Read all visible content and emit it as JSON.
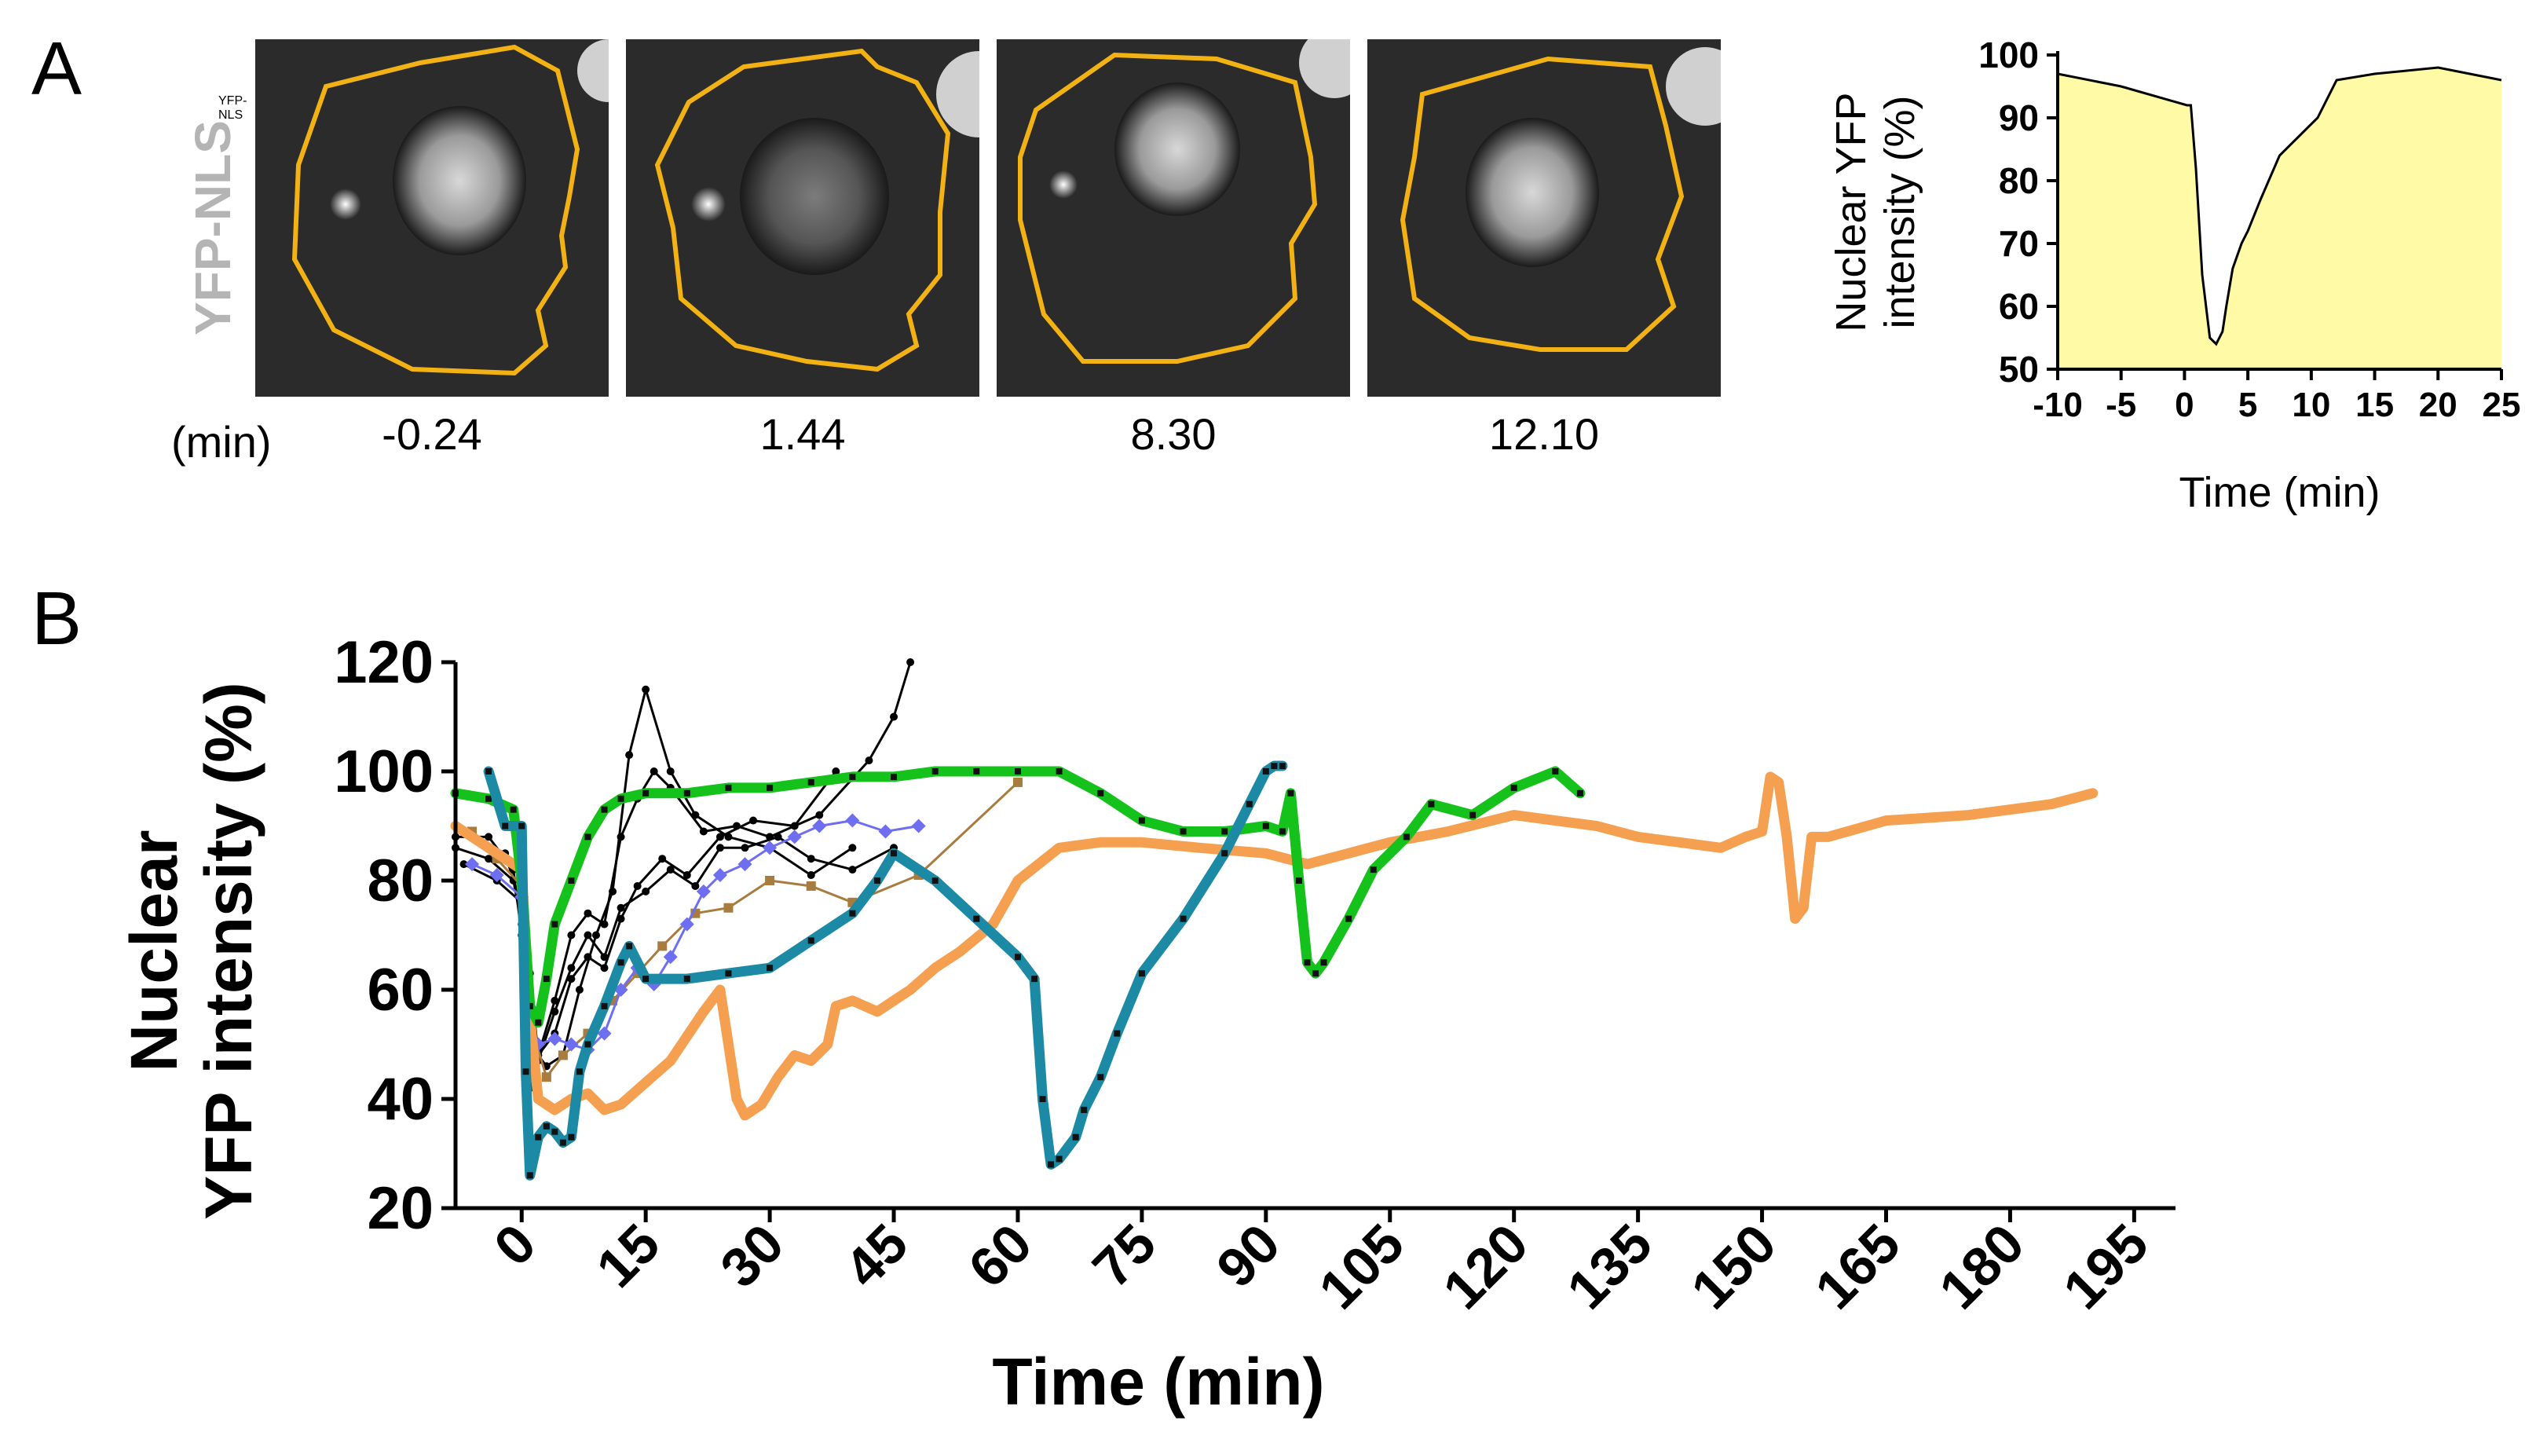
{
  "panel_a": {
    "letter": "A",
    "channel_label": "YFP-NLS",
    "time_unit": "(min)",
    "frames": [
      {
        "time": "-0.24"
      },
      {
        "time": "1.44"
      },
      {
        "time": "8.30"
      },
      {
        "time": "12.10"
      }
    ]
  },
  "panel_b": {
    "letter": "B"
  },
  "chart_data": [
    {
      "type": "area",
      "xlabel": "Time (min)",
      "ylabel_lines": [
        "Nuclear YFP",
        "intensity (%)"
      ],
      "xlim": [
        -10,
        25
      ],
      "ylim": [
        50,
        100
      ],
      "xticks": [
        -10,
        -5,
        0,
        5,
        10,
        15,
        20,
        25
      ],
      "yticks": [
        50,
        60,
        70,
        80,
        90,
        100
      ],
      "fill_color": "#fffaa6",
      "series": [
        {
          "x": [
            -10,
            -5,
            0.2,
            0.5,
            0.9,
            1.4,
            2.0,
            2.5,
            3.0,
            3.3,
            3.8,
            4.5,
            5.0,
            6.0,
            7.5,
            9.0,
            10.5,
            12.0,
            15.0,
            20.0,
            25.0
          ],
          "y": [
            97,
            95,
            92,
            92,
            82,
            65,
            55,
            54,
            56,
            60,
            66,
            70,
            72,
            77,
            84,
            87,
            90,
            96,
            97,
            98,
            96
          ]
        }
      ]
    },
    {
      "type": "line",
      "xlabel": "Time (min)",
      "ylabel_lines": [
        "Nuclear",
        "YFP intensity (%)"
      ],
      "xlim": [
        -8,
        200
      ],
      "ylim": [
        20,
        120
      ],
      "xticks": [
        0,
        15,
        30,
        45,
        60,
        75,
        90,
        105,
        120,
        135,
        150,
        165,
        180,
        195
      ],
      "yticks": [
        20,
        40,
        60,
        80,
        100,
        120
      ],
      "series": [
        {
          "color": "#f5a050",
          "marker": "none",
          "thick": true,
          "x": [
            -8,
            -5,
            -2,
            0,
            1,
            2,
            4,
            6,
            8,
            10,
            12,
            15,
            18,
            22,
            24,
            25,
            26,
            27,
            29,
            31,
            33,
            35,
            37,
            38,
            40,
            43,
            47,
            50,
            53,
            57,
            60,
            65,
            70,
            75,
            82,
            90,
            95,
            100,
            105,
            112,
            120,
            125,
            130,
            135,
            140,
            145,
            148,
            150,
            151,
            152,
            153,
            154,
            155,
            156,
            158,
            165,
            175,
            185,
            190
          ],
          "y": [
            90,
            87,
            84,
            82,
            55,
            40,
            38,
            40,
            41,
            38,
            39,
            43,
            47,
            56,
            60,
            50,
            40,
            37,
            39,
            44,
            48,
            47,
            50,
            57,
            58,
            56,
            60,
            64,
            67,
            72,
            80,
            86,
            87,
            87,
            86,
            85,
            83,
            85,
            87,
            89,
            92,
            91,
            90,
            88,
            87,
            86,
            88,
            89,
            99,
            98,
            88,
            73,
            75,
            88,
            88,
            91,
            92,
            94,
            96
          ]
        },
        {
          "color": "#15c21b",
          "marker": "square",
          "thick": true,
          "x": [
            -8,
            -4,
            -1,
            0,
            1,
            2,
            3,
            4,
            6,
            8,
            10,
            12,
            15,
            20,
            25,
            30,
            35,
            40,
            45,
            50,
            55,
            60,
            65,
            70,
            75,
            80,
            85,
            90,
            92,
            93,
            94,
            95,
            96,
            97,
            100,
            103,
            107,
            110,
            115,
            120,
            125,
            128
          ],
          "y": [
            96,
            95,
            93,
            80,
            57,
            54,
            62,
            72,
            80,
            88,
            93,
            95,
            96,
            96,
            97,
            97,
            98,
            99,
            99,
            100,
            100,
            100,
            100,
            96,
            91,
            89,
            89,
            90,
            89,
            96,
            80,
            65,
            63,
            65,
            73,
            82,
            88,
            94,
            92,
            97,
            100,
            96
          ]
        },
        {
          "color": "#1c8aa5",
          "marker": "square",
          "thick": true,
          "x": [
            -4,
            -2,
            0,
            0.5,
            1,
            2,
            3,
            4,
            5,
            6,
            7,
            8,
            10,
            12,
            13,
            15,
            20,
            25,
            30,
            35,
            40,
            43,
            45,
            50,
            55,
            60,
            62,
            63,
            64,
            65,
            67,
            68,
            70,
            72,
            75,
            80,
            85,
            88,
            90,
            91,
            92
          ],
          "y": [
            100,
            90,
            90,
            45,
            26,
            33,
            35,
            34,
            32,
            33,
            45,
            50,
            57,
            65,
            68,
            62,
            62,
            63,
            64,
            69,
            74,
            80,
            85,
            80,
            73,
            66,
            62,
            40,
            28,
            29,
            33,
            38,
            44,
            52,
            63,
            73,
            85,
            94,
            100,
            101,
            101
          ]
        },
        {
          "color": "#000000",
          "marker": "dot",
          "thick": false,
          "x": [
            -8,
            -4,
            -1,
            0,
            0.5,
            1,
            2,
            4,
            6,
            8,
            10,
            12,
            14,
            16,
            18,
            22,
            26,
            30,
            36,
            42,
            45,
            47
          ],
          "y": [
            88,
            88,
            82,
            70,
            55,
            42,
            48,
            58,
            70,
            74,
            72,
            88,
            95,
            100,
            97,
            89,
            90,
            88,
            92,
            102,
            110,
            120
          ]
        },
        {
          "color": "#000000",
          "marker": "dot",
          "thick": false,
          "x": [
            -8,
            -4,
            -1,
            0,
            1,
            3,
            5,
            7,
            9,
            11,
            13,
            15,
            18,
            21,
            25,
            30,
            35,
            40
          ],
          "y": [
            86,
            84,
            80,
            72,
            50,
            46,
            48,
            60,
            70,
            78,
            103,
            115,
            100,
            92,
            88,
            86,
            81,
            86
          ]
        },
        {
          "color": "#000000",
          "marker": "dot",
          "thick": false,
          "x": [
            -7,
            -3,
            0,
            1,
            2,
            4,
            6,
            8,
            10,
            12,
            14,
            17,
            20,
            24,
            28,
            33,
            38
          ],
          "y": [
            83,
            80,
            76,
            63,
            48,
            52,
            62,
            66,
            64,
            73,
            79,
            84,
            81,
            88,
            91,
            90,
            100
          ]
        },
        {
          "color": "#000000",
          "marker": "dot",
          "thick": false,
          "x": [
            -6,
            -2,
            0,
            1,
            2,
            4,
            6,
            8,
            10,
            12,
            15,
            18,
            21,
            24,
            27,
            31,
            35,
            40,
            45
          ],
          "y": [
            88,
            85,
            75,
            58,
            47,
            56,
            64,
            70,
            66,
            75,
            78,
            82,
            79,
            86,
            86,
            88,
            84,
            82,
            86
          ]
        },
        {
          "color": "#a87b3e",
          "marker": "square",
          "thick": false,
          "x": [
            -6,
            -3,
            0,
            1,
            3,
            5,
            8,
            11,
            14,
            17,
            21,
            25,
            30,
            35,
            40,
            48,
            60
          ],
          "y": [
            89,
            84,
            79,
            54,
            44,
            48,
            52,
            58,
            63,
            68,
            74,
            75,
            80,
            79,
            76,
            81,
            98
          ]
        },
        {
          "color": "#6e6ff0",
          "marker": "diamond",
          "thick": false,
          "x": [
            -6,
            -3,
            0,
            1,
            2,
            4,
            6,
            8,
            10,
            12,
            14,
            16,
            18,
            20,
            22,
            24,
            27,
            30,
            33,
            36,
            40,
            44,
            48
          ],
          "y": [
            83,
            81,
            77,
            52,
            50,
            51,
            50,
            49,
            52,
            60,
            64,
            61,
            66,
            72,
            78,
            81,
            83,
            86,
            88,
            90,
            91,
            89,
            90
          ]
        }
      ]
    }
  ]
}
